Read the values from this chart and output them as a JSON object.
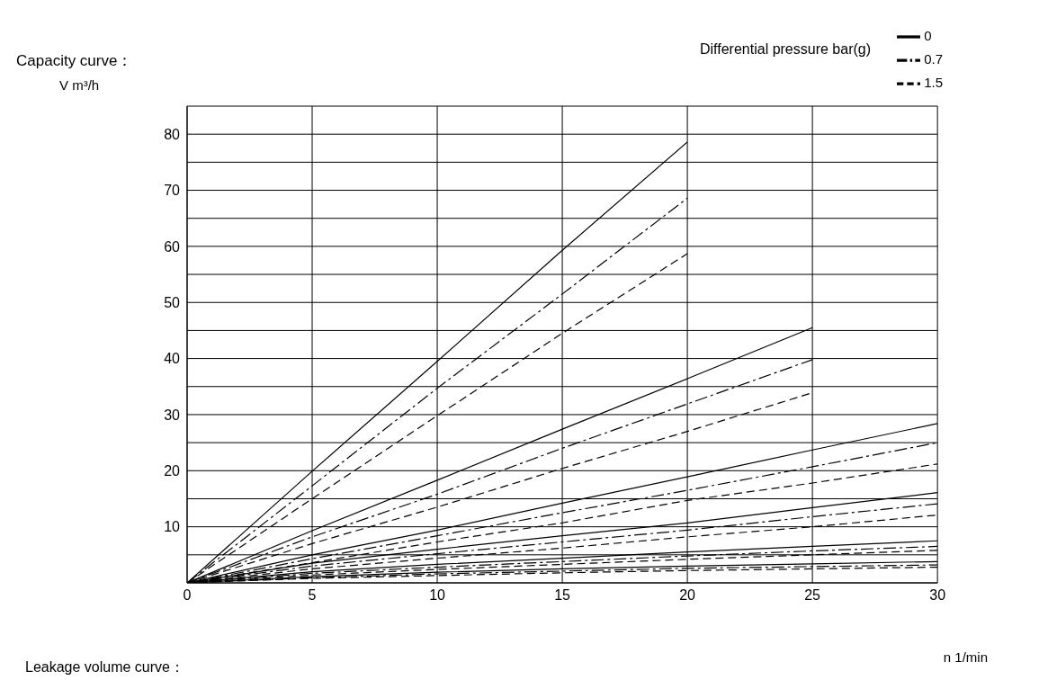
{
  "chart_data": {
    "type": "line",
    "title": "Capacity curve：",
    "xlabel": "n 1/min",
    "ylabel": "V m³/h",
    "legend_title": "Differential pressure bar(g)",
    "annotations": [
      "Leakage volume curve："
    ],
    "x": [
      0,
      5,
      10,
      15,
      20,
      25,
      30
    ],
    "series": [
      {
        "name": "0",
        "color": "#000000",
        "line_style": "solid",
        "values": [
          0,
          19.9,
          39.5,
          59.3,
          78.6,
          null,
          null
        ]
      },
      {
        "name": "0.7",
        "color": "#000000",
        "line_style": "dashdot",
        "values": [
          0,
          17.3,
          34.7,
          51.5,
          68.6,
          null,
          null
        ]
      },
      {
        "name": "1.5",
        "color": "#000000",
        "line_style": "dashed",
        "values": [
          0,
          15,
          29.8,
          44.5,
          58.7,
          null,
          null
        ]
      },
      {
        "color": "#000000",
        "line_style": "solid",
        "values": [
          0,
          9.3,
          18.3,
          27.4,
          36.4,
          45.5,
          null
        ]
      },
      {
        "color": "#000000",
        "line_style": "dashdot",
        "values": [
          0,
          8.2,
          15.8,
          24,
          31.9,
          39.8,
          null
        ]
      },
      {
        "color": "#000000",
        "line_style": "dashed",
        "values": [
          0,
          7,
          13.5,
          20.4,
          27,
          33.9,
          null
        ]
      },
      {
        "color": "#000000",
        "line_style": "solid",
        "values": [
          0,
          5,
          9.4,
          14.2,
          18.9,
          23.7,
          28.4
        ]
      },
      {
        "color": "#000000",
        "line_style": "dashdot",
        "values": [
          0,
          4.3,
          8.4,
          12.5,
          16.5,
          20.7,
          25
        ]
      },
      {
        "color": "#000000",
        "line_style": "dashed",
        "values": [
          0,
          3.6,
          7.3,
          10.7,
          14.7,
          17.8,
          21.2
        ]
      },
      {
        "color": "#000000",
        "line_style": "solid",
        "values": [
          0,
          3.5,
          6,
          8.4,
          10.7,
          13.4,
          16.1
        ]
      },
      {
        "color": "#000000",
        "line_style": "dashdot",
        "values": [
          0,
          3,
          5.2,
          7.3,
          9.4,
          11.8,
          14.1
        ]
      },
      {
        "color": "#000000",
        "line_style": "dashed",
        "values": [
          0,
          2.5,
          4.4,
          6.2,
          8.2,
          10,
          12.1
        ]
      },
      {
        "color": "#000000",
        "line_style": "solid",
        "values": [
          0,
          2,
          3.3,
          4.4,
          5.5,
          6.5,
          7.5
        ]
      },
      {
        "color": "#000000",
        "line_style": "dashdot",
        "values": [
          0,
          1.7,
          2.8,
          3.8,
          4.8,
          5.7,
          6.5
        ]
      },
      {
        "color": "#000000",
        "line_style": "dashed",
        "values": [
          0,
          1.4,
          2.4,
          3.3,
          4.2,
          5,
          5.8
        ]
      },
      {
        "color": "#000000",
        "line_style": "solid",
        "values": [
          0,
          1.1,
          1.9,
          2.5,
          3,
          3.4,
          3.8
        ]
      },
      {
        "color": "#000000",
        "line_style": "dashdot",
        "values": [
          0,
          0.9,
          1.6,
          2.1,
          2.6,
          2.9,
          3.2
        ]
      },
      {
        "color": "#000000",
        "line_style": "dashed",
        "values": [
          0,
          0.8,
          1.3,
          1.8,
          2.2,
          2.5,
          2.8
        ]
      }
    ],
    "xlim": [
      0,
      30
    ],
    "xticks": [
      0,
      5,
      10,
      15,
      20,
      25,
      30
    ],
    "ylim": [
      0,
      85
    ],
    "yticks": [
      {
        "value": 0,
        "label": null
      },
      {
        "value": 5,
        "label": null
      },
      10,
      {
        "value": 15,
        "label": null
      },
      20,
      {
        "value": 25,
        "label": null
      },
      30,
      {
        "value": 35,
        "label": null
      },
      40,
      {
        "value": 45,
        "label": null
      },
      50,
      {
        "value": 55,
        "label": null
      },
      60,
      {
        "value": 65,
        "label": null
      },
      70,
      {
        "value": 75,
        "label": null
      },
      80,
      {
        "value": 85,
        "label": null
      }
    ],
    "grid": true,
    "legend": "top right",
    "marker": "none"
  }
}
